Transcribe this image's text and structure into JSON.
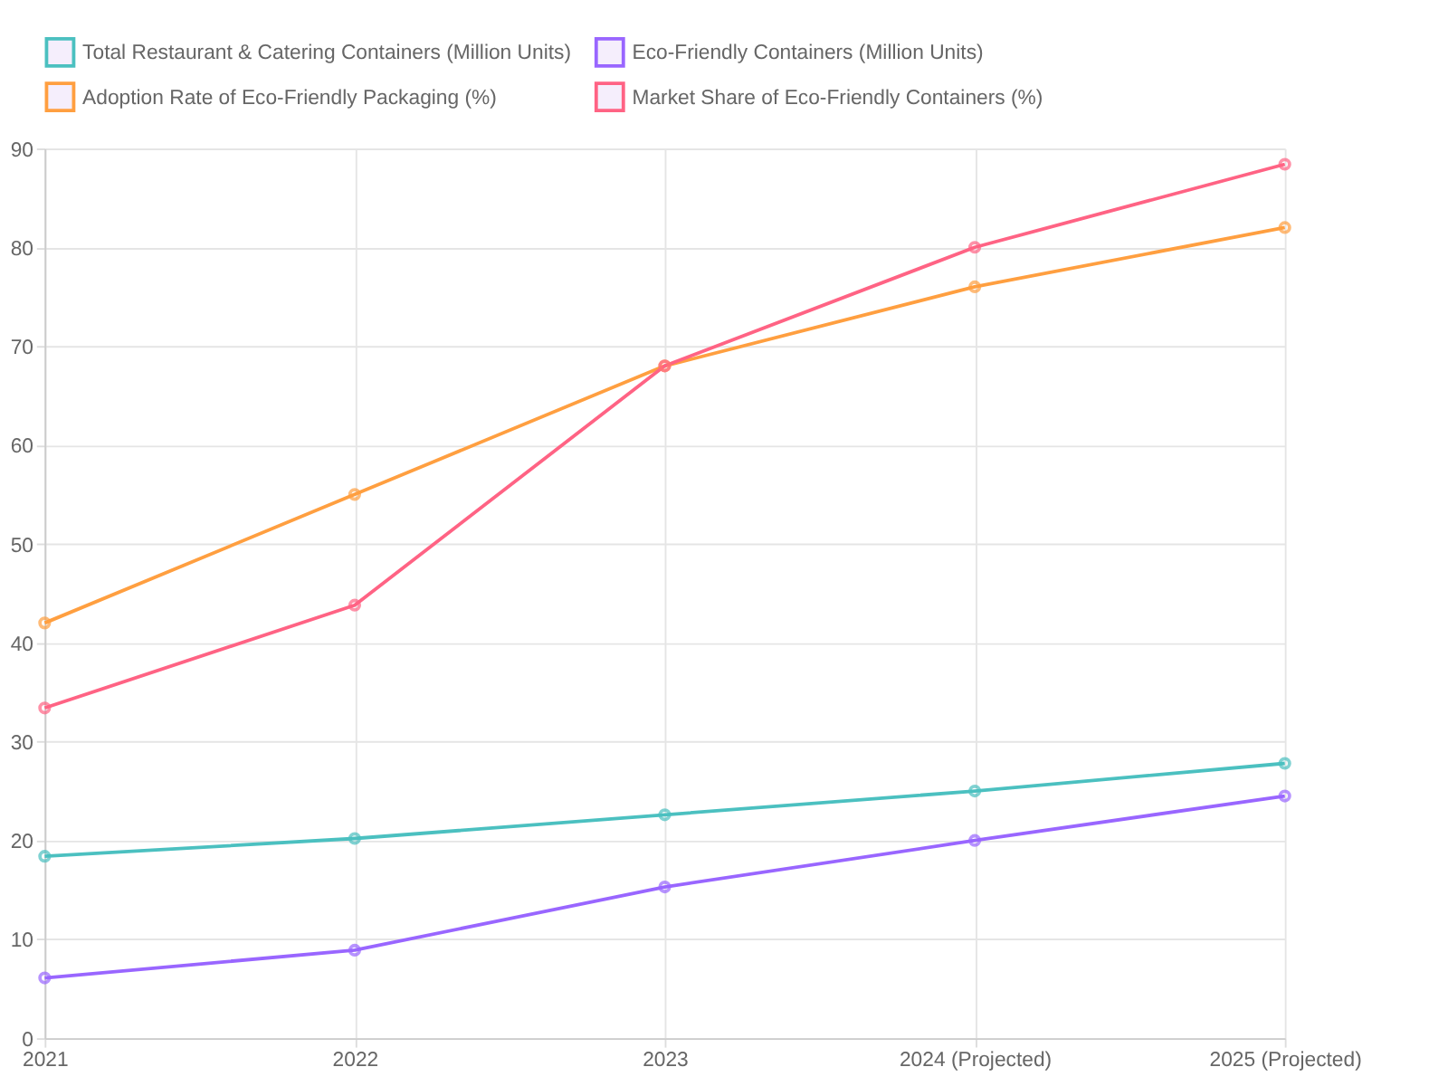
{
  "chart_data": {
    "type": "line",
    "categories": [
      "2021",
      "2022",
      "2023",
      "2024 (Projected)",
      "2025 (Projected)"
    ],
    "series": [
      {
        "name": "Total Restaurant & Catering Containers (Million Units)",
        "color": "#4bc0c0",
        "values": [
          18.4,
          20.2,
          22.6,
          25.0,
          27.8
        ]
      },
      {
        "name": "Eco-Friendly Containers (Million Units)",
        "color": "#9966ff",
        "values": [
          6.1,
          8.9,
          15.3,
          20.0,
          24.5
        ]
      },
      {
        "name": "Adoption Rate of Eco-Friendly Packaging (%)",
        "color": "#ff9f40",
        "values": [
          42,
          55,
          68,
          76,
          82
        ]
      },
      {
        "name": "Market Share of Eco-Friendly Containers (%)",
        "color": "#ff6384",
        "values": [
          33.4,
          43.8,
          68,
          80,
          88.4
        ]
      }
    ],
    "ylim": [
      0,
      90
    ],
    "yticks": [
      0,
      10,
      20,
      30,
      40,
      50,
      60,
      70,
      80,
      90
    ],
    "grid": true,
    "legend": "top",
    "marker": "circle",
    "line_style": "solid"
  }
}
